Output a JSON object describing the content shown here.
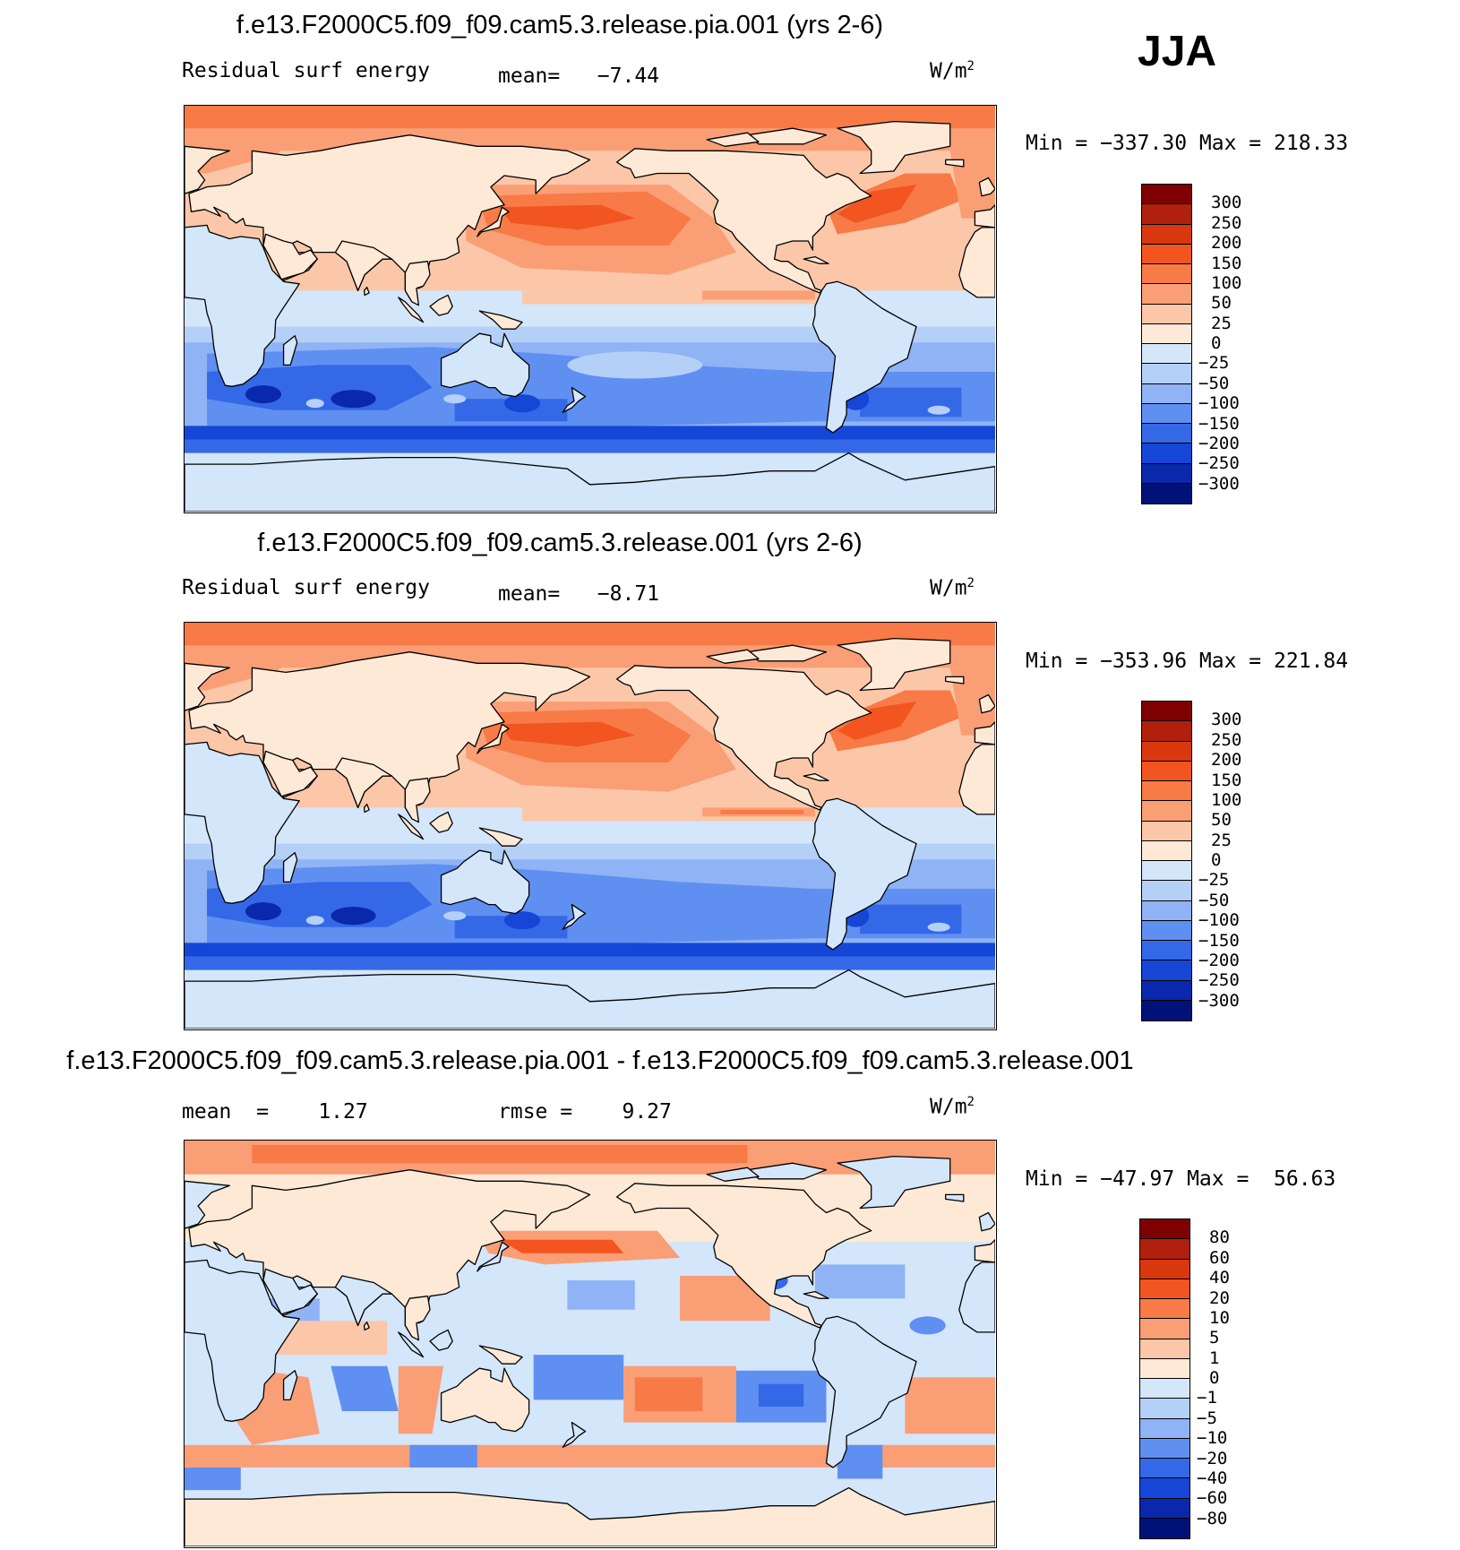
{
  "season_label": "JJA",
  "panels": [
    {
      "title": "f.e13.F2000C5.f09_f09.cam5.3.release.pia.001 (yrs 2-6)",
      "left_label": "Residual surf energy",
      "stat_label": "mean=",
      "stat_value": "−7.44",
      "units": "W/m",
      "units_exp": "2",
      "min_label": "Min  =",
      "min_value": "−337.30",
      "max_label": "Max  =",
      "max_value": "218.33",
      "variant": "a",
      "colorbar_ticks": [
        "300",
        "250",
        "200",
        "150",
        "100",
        "50",
        "25",
        "0",
        "−25",
        "−50",
        "−100",
        "−150",
        "−200",
        "−250",
        "−300"
      ]
    },
    {
      "title": "f.e13.F2000C5.f09_f09.cam5.3.release.001 (yrs 2-6)",
      "left_label": "Residual surf energy",
      "stat_label": "mean=",
      "stat_value": "−8.71",
      "units": "W/m",
      "units_exp": "2",
      "min_label": "Min  =",
      "min_value": "−353.96",
      "max_label": "Max  =",
      "max_value": "221.84",
      "variant": "b",
      "colorbar_ticks": [
        "300",
        "250",
        "200",
        "150",
        "100",
        "50",
        "25",
        "0",
        "−25",
        "−50",
        "−100",
        "−150",
        "−200",
        "−250",
        "−300"
      ]
    },
    {
      "title": "f.e13.F2000C5.f09_f09.cam5.3.release.pia.001 - f.e13.F2000C5.f09_f09.cam5.3.release.001",
      "left_label": "mean  =    1.27",
      "stat_label": "rmse  =",
      "stat_value": "9.27",
      "units": "W/m",
      "units_exp": "2",
      "min_label": "Min  =",
      "min_value": "−47.97",
      "max_label": "Max  =",
      "max_value": "56.63",
      "variant": "diff",
      "colorbar_ticks": [
        "80",
        "60",
        "40",
        "20",
        "10",
        "5",
        "1",
        "0",
        "−1",
        "−5",
        "−10",
        "−20",
        "−40",
        "−60",
        "−80"
      ]
    }
  ],
  "chart_data": [
    {
      "type": "heatmap",
      "title": "f.e13.F2000C5.f09_f09.cam5.3.release.pia.001 (yrs 2-6)",
      "variable": "Residual surf energy",
      "units": "W/m2",
      "mean": -7.44,
      "min": -337.3,
      "max": 218.33,
      "contour_levels": [
        -300,
        -250,
        -200,
        -150,
        -100,
        -50,
        -25,
        0,
        25,
        50,
        100,
        150,
        200,
        250,
        300
      ],
      "x_range_lon": [
        0,
        360
      ],
      "y_range_lat": [
        -90,
        90
      ]
    },
    {
      "type": "heatmap",
      "title": "f.e13.F2000C5.f09_f09.cam5.3.release.001 (yrs 2-6)",
      "variable": "Residual surf energy",
      "units": "W/m2",
      "mean": -8.71,
      "min": -353.96,
      "max": 221.84,
      "contour_levels": [
        -300,
        -250,
        -200,
        -150,
        -100,
        -50,
        -25,
        0,
        25,
        50,
        100,
        150,
        200,
        250,
        300
      ],
      "x_range_lon": [
        0,
        360
      ],
      "y_range_lat": [
        -90,
        90
      ]
    },
    {
      "type": "heatmap",
      "title": "f.e13.F2000C5.f09_f09.cam5.3.release.pia.001 - f.e13.F2000C5.f09_f09.cam5.3.release.001",
      "units": "W/m2",
      "mean": 1.27,
      "rmse": 9.27,
      "min": -47.97,
      "max": 56.63,
      "contour_levels": [
        -80,
        -60,
        -40,
        -20,
        -10,
        -5,
        -1,
        0,
        1,
        5,
        10,
        20,
        40,
        60,
        80
      ],
      "x_range_lon": [
        0,
        360
      ],
      "y_range_lat": [
        -90,
        90
      ]
    }
  ],
  "colors": {
    "scale": [
      "#7f0000",
      "#b0200c",
      "#d9380f",
      "#f2551f",
      "#f77a47",
      "#fa9e76",
      "#fbc7a8",
      "#fde9d6",
      "#d3e6fa",
      "#b4d0f7",
      "#8fb3f4",
      "#5f8ff0",
      "#3468e6",
      "#1546d6",
      "#0a28ab",
      "#001277"
    ],
    "land_neg": "#d3e6fa",
    "land_pos": "#fde9d6",
    "coast": "#000000"
  }
}
